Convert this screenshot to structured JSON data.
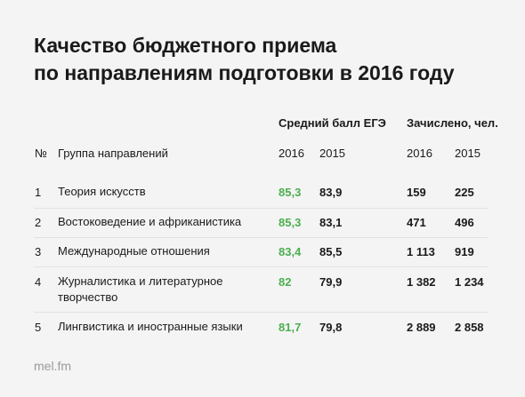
{
  "title": {
    "line1": "Качество бюджетного приема",
    "line2": "по направлениям подготовки в 2016 году"
  },
  "table": {
    "group_headers": {
      "score": "Средний балл ЕГЭ",
      "enrolled": "Зачислено, чел."
    },
    "columns": {
      "num": "№",
      "group": "Группа направлений",
      "score_2016": "2016",
      "score_2015": "2015",
      "enrolled_2016": "2016",
      "enrolled_2015": "2015"
    },
    "rows": [
      {
        "num": "1",
        "group": "Теория искусств",
        "score_2016": "85,3",
        "score_2015": "83,9",
        "enrolled_2016": "159",
        "enrolled_2015": "225"
      },
      {
        "num": "2",
        "group": "Востоковедение и африканистика",
        "score_2016": "85,3",
        "score_2015": "83,1",
        "enrolled_2016": "471",
        "enrolled_2015": "496"
      },
      {
        "num": "3",
        "group": "Международные отношения",
        "score_2016": "83,4",
        "score_2015": "85,5",
        "enrolled_2016": "1 113",
        "enrolled_2015": "919"
      },
      {
        "num": "4",
        "group": "Журналистика и литературное творчество",
        "score_2016": "82",
        "score_2015": "79,9",
        "enrolled_2016": "1 382",
        "enrolled_2015": "1 234"
      },
      {
        "num": "5",
        "group": "Лингвистика и иностранные языки",
        "score_2016": "81,7",
        "score_2015": "79,8",
        "enrolled_2016": "2 889",
        "enrolled_2015": "2 858"
      }
    ]
  },
  "footer": {
    "source": "mel.fm"
  },
  "colors": {
    "accent": "#4caf50",
    "background": "#f4f4f4"
  }
}
